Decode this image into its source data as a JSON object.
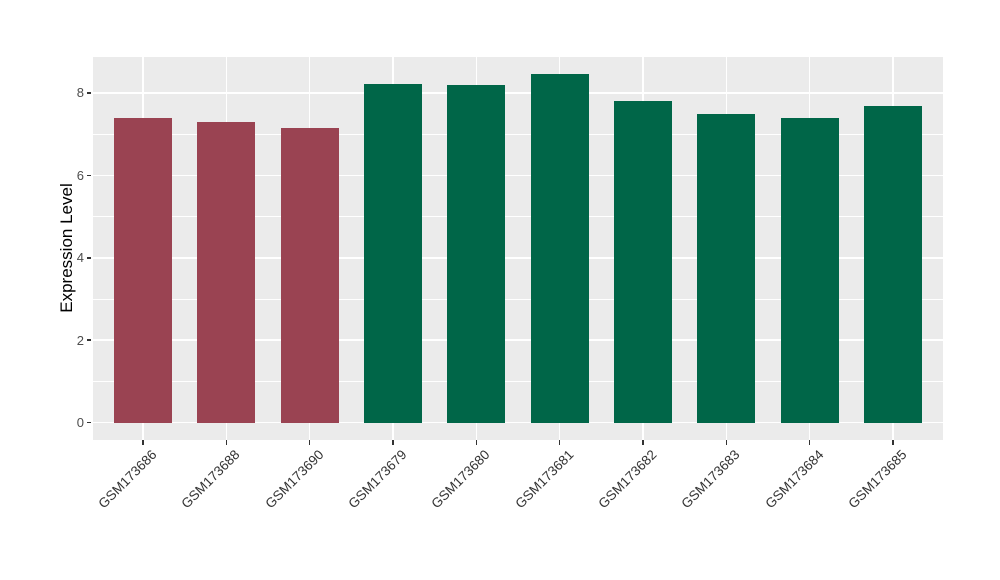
{
  "chart_data": {
    "type": "bar",
    "title": "",
    "xlabel": "",
    "ylabel": "Expression Level",
    "categories": [
      "GSM173686",
      "GSM173688",
      "GSM173690",
      "GSM173679",
      "GSM173680",
      "GSM173681",
      "GSM173682",
      "GSM173683",
      "GSM173684",
      "GSM173685"
    ],
    "values": [
      7.4,
      7.3,
      7.15,
      8.22,
      8.2,
      8.46,
      7.8,
      7.48,
      7.4,
      7.68
    ],
    "bar_colors": [
      "#9a4352",
      "#9a4352",
      "#9a4352",
      "#006648",
      "#006648",
      "#006648",
      "#006648",
      "#006648",
      "#006648",
      "#006648"
    ],
    "group_colors": {
      "group1": "#9a4352",
      "group2": "#006648"
    },
    "ylim": [
      -0.42,
      8.87
    ],
    "yticks": [
      0,
      2,
      4,
      6,
      8
    ],
    "ytick_labels": [
      "0",
      "2",
      "4",
      "6",
      "8"
    ],
    "minor_yticks": [
      1,
      3,
      5,
      7
    ],
    "bar_width_fraction": 0.7,
    "grid": true,
    "legend": null,
    "panel_bg": "#ebebeb",
    "grid_color": "#ffffff",
    "axis_text_color": "#4d4d4d",
    "tick_color": "#333333"
  }
}
